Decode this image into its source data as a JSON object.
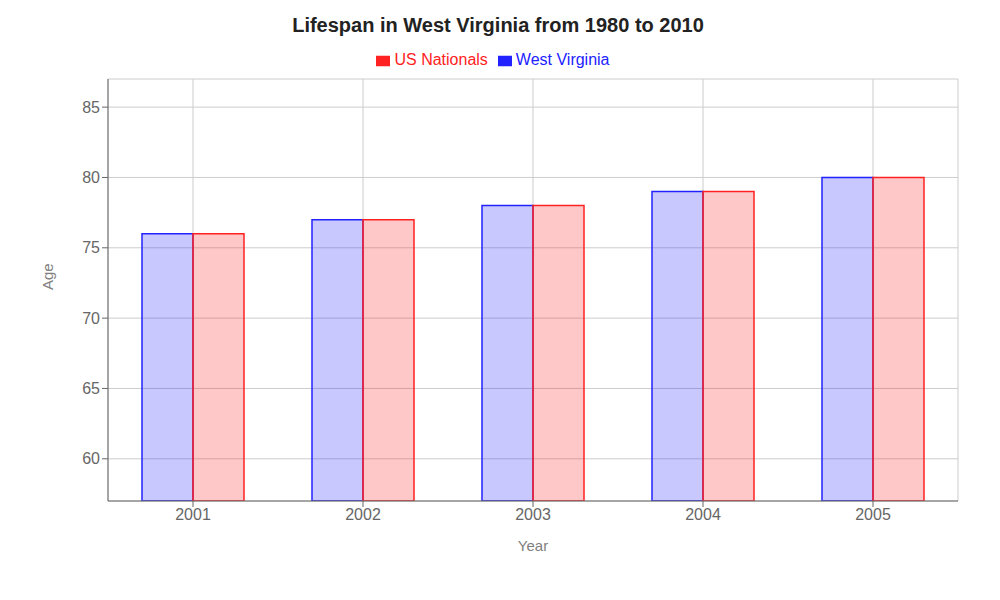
{
  "chart_data": {
    "type": "bar",
    "title": "Lifespan in West Virginia from 1980 to 2010",
    "x_label": "Year",
    "y_label": "Age",
    "categories": [
      "2001",
      "2002",
      "2003",
      "2004",
      "2005"
    ],
    "series": [
      {
        "name": "West Virginia",
        "color": "#2222ff",
        "values": [
          76,
          77,
          78,
          79,
          80
        ]
      },
      {
        "name": "US Nationals",
        "color": "#ff2222",
        "values": [
          76,
          77,
          78,
          79,
          80
        ]
      }
    ],
    "ylim": [
      57,
      87
    ],
    "yticks": [
      60,
      65,
      70,
      75,
      80,
      85
    ],
    "grid": true,
    "legend": "top"
  }
}
